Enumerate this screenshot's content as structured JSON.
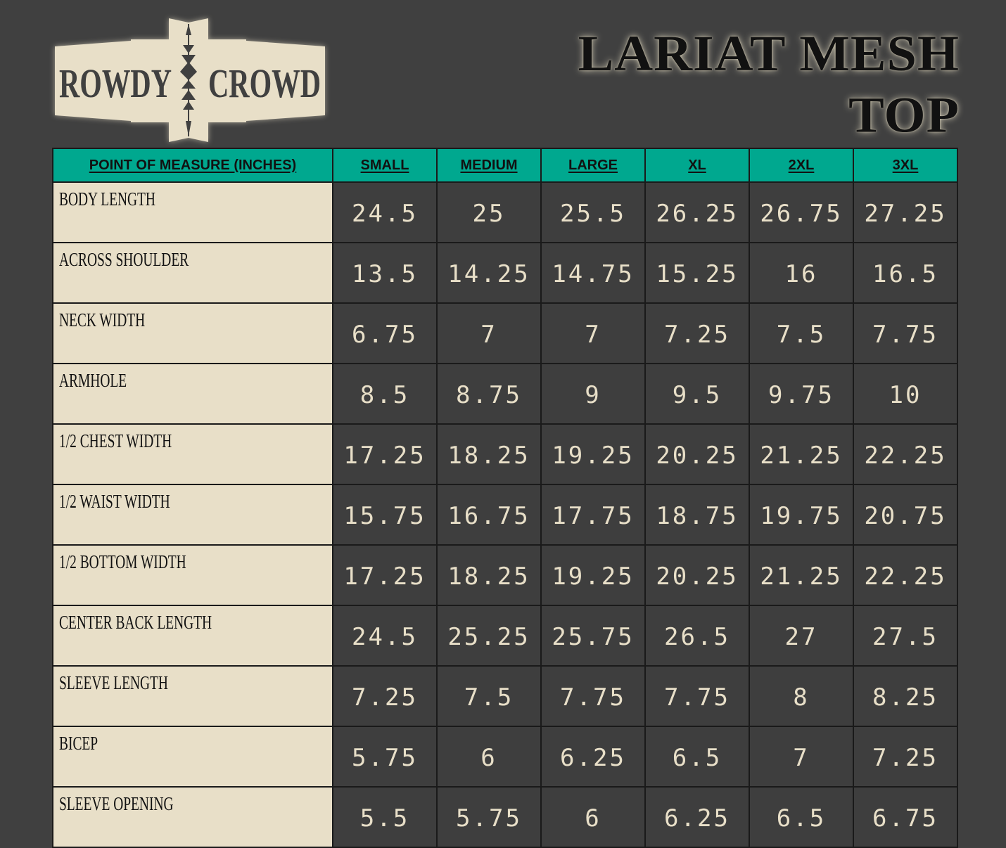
{
  "brand": {
    "logo_left": "ROWDY",
    "logo_right": "CROWD"
  },
  "title": {
    "line1": "LARIAT MESH",
    "line2": "TOP"
  },
  "colors": {
    "background": "#404040",
    "header": "#00a88f",
    "label_cell": "#e8dfc8",
    "value_cell": "#3e3e3e",
    "value_text": "#e8dfc8"
  },
  "table": {
    "headers": [
      "POINT OF MEASURE (INCHES)",
      "SMALL",
      "MEDIUM",
      "LARGE",
      "XL",
      "2XL",
      "3XL"
    ],
    "rows": [
      {
        "label": "Body Length",
        "values": [
          "24.5",
          "25",
          "25.5",
          "26.25",
          "26.75",
          "27.25"
        ]
      },
      {
        "label": "Across Shoulder",
        "values": [
          "13.5",
          "14.25",
          "14.75",
          "15.25",
          "16",
          "16.5"
        ]
      },
      {
        "label": "Neck Width",
        "values": [
          "6.75",
          "7",
          "7",
          "7.25",
          "7.5",
          "7.75"
        ]
      },
      {
        "label": "Armhole",
        "values": [
          "8.5",
          "8.75",
          "9",
          "9.5",
          "9.75",
          "10"
        ]
      },
      {
        "label": "1/2 Chest Width",
        "values": [
          "17.25",
          "18.25",
          "19.25",
          "20.25",
          "21.25",
          "22.25"
        ]
      },
      {
        "label": "1/2 Waist Width",
        "values": [
          "15.75",
          "16.75",
          "17.75",
          "18.75",
          "19.75",
          "20.75"
        ]
      },
      {
        "label": "1/2 Bottom Width",
        "values": [
          "17.25",
          "18.25",
          "19.25",
          "20.25",
          "21.25",
          "22.25"
        ]
      },
      {
        "label": "Center Back Length",
        "values": [
          "24.5",
          "25.25",
          "25.75",
          "26.5",
          "27",
          "27.5"
        ]
      },
      {
        "label": "Sleeve Length",
        "values": [
          "7.25",
          "7.5",
          "7.75",
          "7.75",
          "8",
          "8.25"
        ]
      },
      {
        "label": "Bicep",
        "values": [
          "5.75",
          "6",
          "6.25",
          "6.5",
          "7",
          "7.25"
        ]
      },
      {
        "label": "Sleeve Opening",
        "values": [
          "5.5",
          "5.75",
          "6",
          "6.25",
          "6.5",
          "6.75"
        ]
      }
    ]
  }
}
